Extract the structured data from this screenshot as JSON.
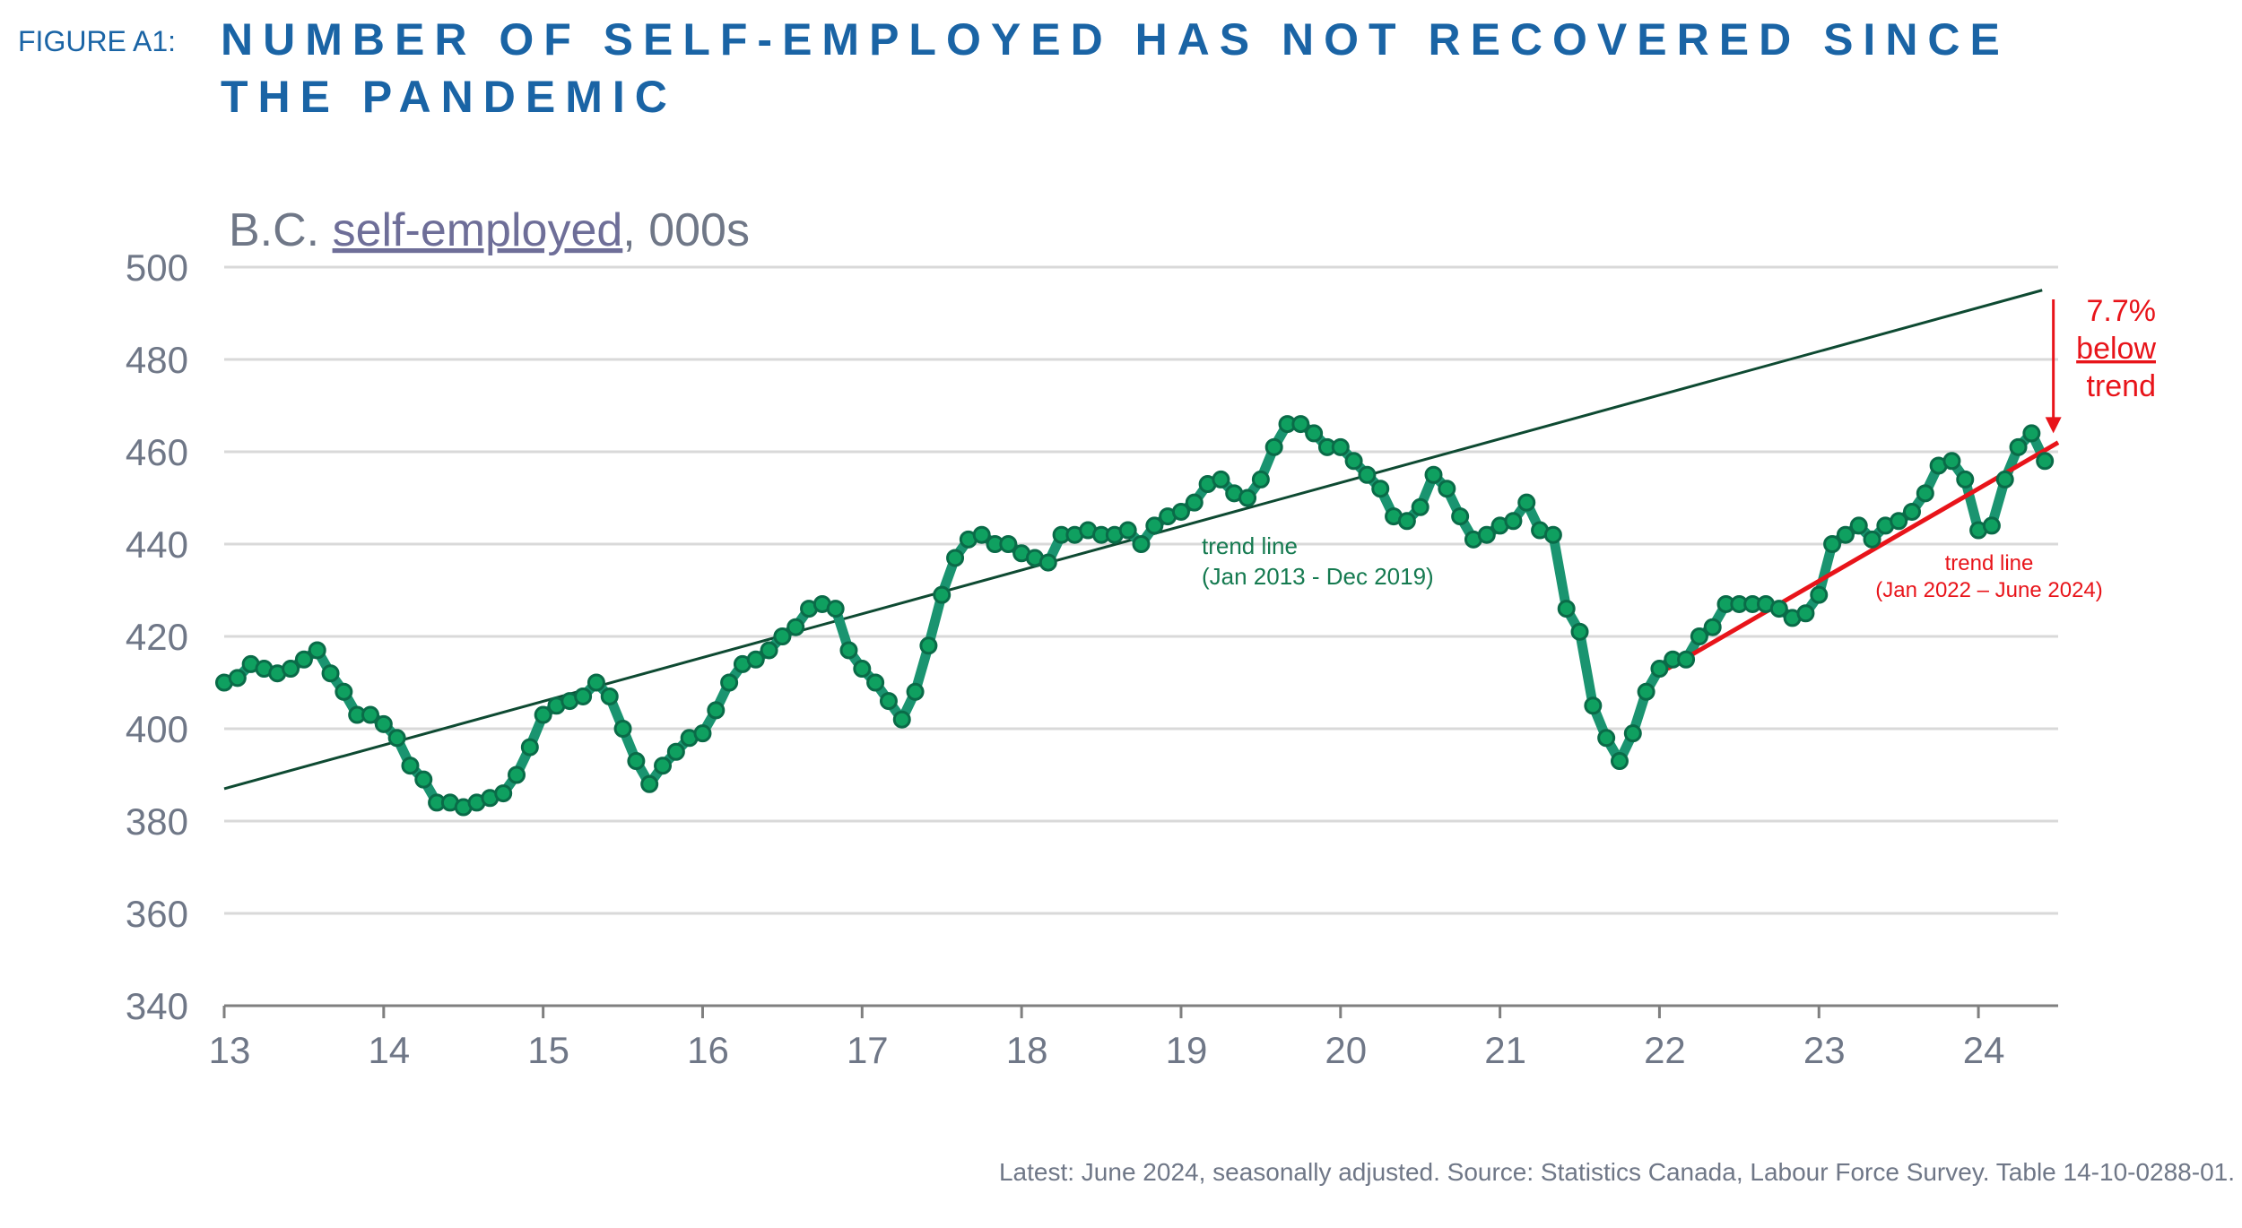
{
  "figure_label": "FIGURE A1:",
  "title_lines": [
    "NUMBER OF SELF-EMPLOYED HAS NOT RECOVERED SINCE",
    "THE PANDEMIC"
  ],
  "source": "Latest:  June 2024, seasonally adjusted.   Source: Statistics Canada, Labour Force Survey. Table 14-10-0288-01.",
  "colors": {
    "title": "#1a64a5",
    "series_line": "#1a9470",
    "marker_fill": "#0fa060",
    "marker_edge": "#0a6b48",
    "trend1": "#0e4a32",
    "trend2": "#e8141a",
    "axis_text": "#6f7787",
    "grid": "#d9d9d9",
    "annotation_red": "#e8141a",
    "annotation_green": "#157a50"
  },
  "chart_data": {
    "type": "line",
    "title": "B.C. self-employed, 000s",
    "title_parts": {
      "prefix": "B.C. ",
      "underlined": "self-employed",
      "suffix": ", 000s"
    },
    "xlabel": "",
    "ylabel": "",
    "ylim": [
      340,
      500
    ],
    "yticks": [
      340,
      360,
      380,
      400,
      420,
      440,
      460,
      480,
      500
    ],
    "xlim": [
      13,
      24.5
    ],
    "xticks": [
      13,
      14,
      15,
      16,
      17,
      18,
      19,
      20,
      21,
      22,
      23,
      24
    ],
    "xtick_labels": [
      "13",
      "14",
      "15",
      "16",
      "17",
      "18",
      "19",
      "20",
      "21",
      "22",
      "23",
      "24"
    ],
    "grid": true,
    "series": [
      {
        "name": "B.C. self-employed",
        "start_year": 13,
        "step": 0.0833333,
        "values": [
          410,
          411,
          414,
          413,
          412,
          413,
          415,
          417,
          412,
          408,
          403,
          403,
          401,
          398,
          392,
          389,
          384,
          384,
          383,
          384,
          385,
          386,
          390,
          396,
          403,
          405,
          406,
          407,
          410,
          407,
          400,
          393,
          388,
          392,
          395,
          398,
          399,
          404,
          410,
          414,
          415,
          417,
          420,
          422,
          426,
          427,
          426,
          417,
          413,
          410,
          406,
          402,
          408,
          418,
          429,
          437,
          441,
          442,
          440,
          440,
          438,
          437,
          436,
          442,
          442,
          443,
          442,
          442,
          443,
          440,
          444,
          446,
          447,
          449,
          453,
          454,
          451,
          450,
          454,
          461,
          466,
          466,
          464,
          461,
          461,
          458,
          455,
          452,
          446,
          445,
          448,
          455,
          452,
          446,
          441,
          442,
          444,
          445,
          449,
          443,
          442,
          426,
          421,
          405,
          398,
          393,
          399,
          408,
          413,
          415,
          415,
          420,
          422,
          427,
          427,
          427,
          427,
          426,
          424,
          425,
          429,
          440,
          442,
          444,
          441,
          444,
          445,
          447,
          451,
          457,
          458,
          454,
          443,
          444,
          454,
          461,
          464,
          458
        ]
      }
    ],
    "trend_lines": [
      {
        "name": "trend line (Jan 2013 - Dec 2019)",
        "x": [
          13,
          24.4
        ],
        "y": [
          387,
          495
        ]
      },
      {
        "name": "trend line (Jan 2022 – June 2024)",
        "x": [
          22.05,
          24.5
        ],
        "y": [
          413,
          462
        ]
      }
    ],
    "annotations": {
      "trend1_label": [
        "trend line",
        "(Jan 2013 - Dec 2019)"
      ],
      "trend2_label": [
        "trend line",
        "(Jan 2022 – June 2024)"
      ],
      "gap": {
        "pct": "7.7%",
        "word1": "below",
        "word2": "trend",
        "arrow_from": 493,
        "arrow_to": 464,
        "arrow_x": 24.47
      }
    }
  }
}
